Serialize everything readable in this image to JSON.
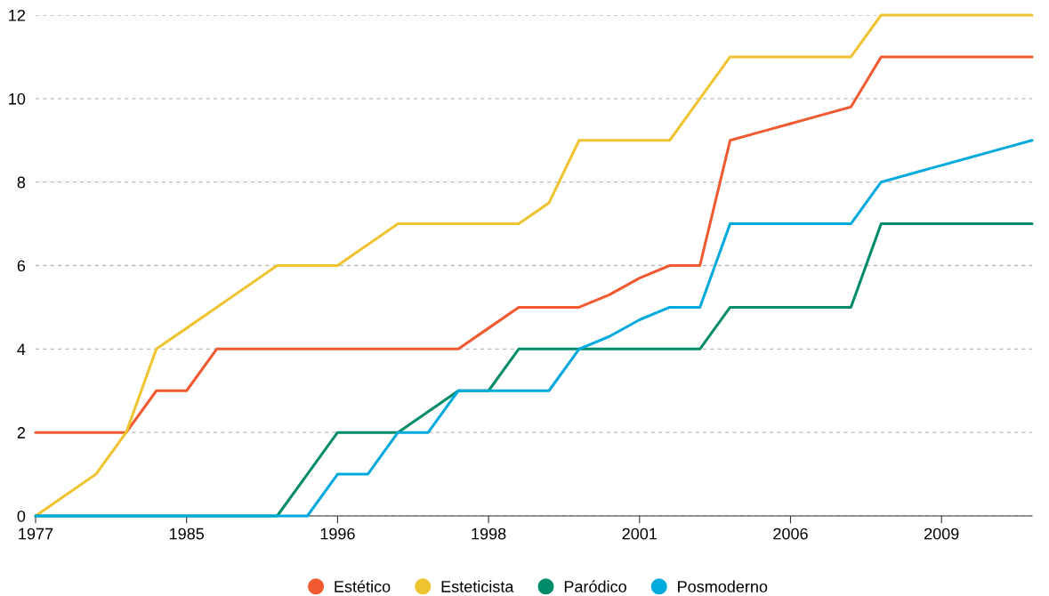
{
  "chart_data": {
    "type": "line",
    "categories": [
      "1977",
      null,
      null,
      null,
      null,
      "1985",
      null,
      null,
      null,
      null,
      "1996",
      null,
      null,
      null,
      null,
      "1998",
      null,
      null,
      null,
      null,
      "2001",
      null,
      null,
      null,
      null,
      "2006",
      null,
      null,
      null,
      null,
      "2009",
      null,
      null,
      null
    ],
    "ylim": [
      0,
      12
    ],
    "yticks": [
      0,
      2,
      4,
      6,
      8,
      10,
      12
    ],
    "grid": "y",
    "legend": "bottom",
    "marker": "none",
    "line_style": "solid",
    "series": [
      {
        "name": "Estético",
        "color": "#f15a30",
        "values": [
          2,
          2,
          2,
          2,
          3,
          3,
          4,
          4,
          4,
          4,
          4,
          4,
          4,
          4,
          4,
          4.5,
          5,
          5,
          5,
          5.3,
          5.7,
          6,
          6,
          9,
          9.2,
          9.4,
          9.6,
          9.8,
          11,
          11,
          11,
          11,
          11,
          11
        ]
      },
      {
        "name": "Esteticista",
        "color": "#f0c430",
        "values": [
          0,
          0.5,
          1,
          2,
          4,
          4.5,
          5,
          5.5,
          6,
          6,
          6,
          6.5,
          7,
          7,
          7,
          7,
          7,
          7.5,
          9,
          9,
          9,
          9,
          10,
          11,
          11,
          11,
          11,
          11,
          12,
          12,
          12,
          12,
          12,
          12
        ]
      },
      {
        "name": "Paródico",
        "color": "#008c6a",
        "values": [
          0,
          0,
          0,
          0,
          0,
          0,
          0,
          0,
          0,
          1,
          2,
          2,
          2,
          2.5,
          3,
          3,
          4,
          4,
          4,
          4,
          4,
          4,
          4,
          5,
          5,
          5,
          5,
          5,
          7,
          7,
          7,
          7,
          7,
          7
        ]
      },
      {
        "name": "Posmoderno",
        "color": "#00aadd",
        "values": [
          0,
          0,
          0,
          0,
          0,
          0,
          0,
          0,
          0,
          0,
          1,
          1,
          2,
          2,
          3,
          3,
          3,
          3,
          4,
          4.3,
          4.7,
          5,
          5,
          7,
          7,
          7,
          7,
          7,
          8,
          8.2,
          8.4,
          8.6,
          8.8,
          9
        ]
      }
    ]
  }
}
